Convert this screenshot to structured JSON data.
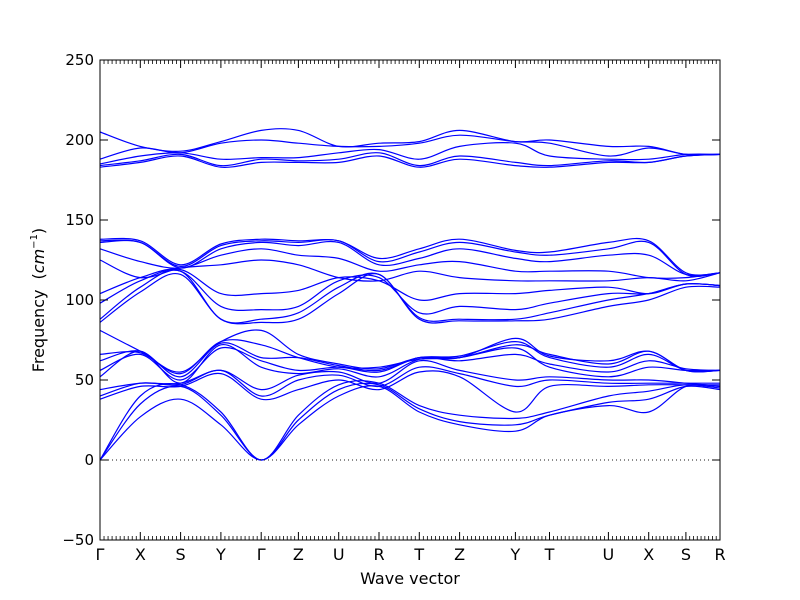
{
  "chart_data": {
    "type": "line",
    "title": "",
    "xlabel": "Wave vector",
    "ylabel": "Frequency",
    "ylabel_unit": "cm",
    "ylabel_unit_exp": "−1",
    "ylim": [
      -50,
      250
    ],
    "yticks": [
      -50,
      0,
      50,
      100,
      150,
      200,
      250
    ],
    "ytick_labels": [
      "−50",
      "0",
      "50",
      "100",
      "150",
      "200",
      "250"
    ],
    "xlim": [
      0,
      100
    ],
    "kpoints": [
      {
        "label": "Γ",
        "x": 0
      },
      {
        "label": "X",
        "x": 6.5
      },
      {
        "label": "S",
        "x": 13
      },
      {
        "label": "Y",
        "x": 19.5
      },
      {
        "label": "Γ",
        "x": 26
      },
      {
        "label": "Z",
        "x": 32
      },
      {
        "label": "U",
        "x": 38.5
      },
      {
        "label": "R",
        "x": 45
      },
      {
        "label": "T",
        "x": 51.5
      },
      {
        "label": "Z",
        "x": 58
      },
      {
        "label": "Y",
        "x": 67
      },
      {
        "label": "T",
        "x": 72.5
      },
      {
        "label": "U",
        "x": 82
      },
      {
        "label": "X",
        "x": 88.5
      },
      {
        "label": "S",
        "x": 94.5
      },
      {
        "label": "R",
        "x": 100
      }
    ],
    "zero_line": true,
    "grid": false,
    "line_color": "#0000ff",
    "series": [
      {
        "values": [
          0,
          27,
          38,
          22,
          0,
          22,
          40,
          46,
          30,
          22,
          18,
          28,
          34,
          30,
          46,
          46
        ]
      },
      {
        "values": [
          0,
          35,
          46,
          28,
          0,
          25,
          44,
          47,
          32,
          24,
          22,
          28,
          36,
          38,
          46,
          44
        ]
      },
      {
        "values": [
          0,
          40,
          47,
          30,
          0,
          28,
          47,
          48,
          34,
          28,
          26,
          30,
          40,
          43,
          47,
          45
        ]
      },
      {
        "values": [
          38,
          46,
          46,
          54,
          38,
          44,
          50,
          44,
          55,
          52,
          30,
          46,
          46,
          47,
          47,
          47
        ]
      },
      {
        "values": [
          40,
          48,
          47,
          56,
          40,
          50,
          53,
          46,
          58,
          54,
          46,
          50,
          48,
          48,
          48,
          48
        ]
      },
      {
        "values": [
          44,
          48,
          48,
          56,
          44,
          53,
          55,
          48,
          62,
          56,
          50,
          52,
          50,
          50,
          48,
          46
        ]
      },
      {
        "values": [
          52,
          68,
          48,
          72,
          58,
          54,
          57,
          52,
          63,
          64,
          70,
          58,
          52,
          58,
          56,
          56
        ]
      },
      {
        "values": [
          56,
          66,
          50,
          70,
          62,
          56,
          58,
          55,
          64,
          62,
          66,
          60,
          55,
          62,
          57,
          56
        ]
      },
      {
        "values": [
          62,
          68,
          52,
          73,
          64,
          64,
          59,
          56,
          64,
          65,
          74,
          64,
          58,
          66,
          56,
          56
        ]
      },
      {
        "values": [
          66,
          67,
          54,
          74,
          72,
          64,
          58,
          58,
          63,
          64,
          72,
          66,
          60,
          68,
          56,
          56
        ]
      },
      {
        "values": [
          81,
          68,
          55,
          74,
          81,
          66,
          60,
          57,
          64,
          64,
          76,
          65,
          62,
          68,
          56,
          56
        ]
      },
      {
        "values": [
          86,
          105,
          116,
          88,
          86,
          88,
          104,
          116,
          88,
          87,
          87,
          88,
          96,
          100,
          108,
          108
        ]
      },
      {
        "values": [
          88,
          108,
          118,
          88,
          88,
          92,
          108,
          116,
          89,
          88,
          88,
          92,
          100,
          104,
          110,
          109
        ]
      },
      {
        "values": [
          98,
          112,
          118,
          96,
          94,
          96,
          112,
          114,
          92,
          96,
          94,
          98,
          104,
          104,
          110,
          109
        ]
      },
      {
        "values": [
          104,
          114,
          119,
          104,
          104,
          106,
          114,
          112,
          100,
          104,
          104,
          106,
          108,
          104,
          110,
          109
        ]
      },
      {
        "values": [
          125,
          114,
          120,
          122,
          125,
          122,
          114,
          112,
          118,
          114,
          112,
          112,
          112,
          114,
          112,
          117
        ]
      },
      {
        "values": [
          132,
          124,
          120,
          128,
          132,
          128,
          126,
          118,
          122,
          124,
          118,
          118,
          118,
          114,
          114,
          117
        ]
      },
      {
        "values": [
          136,
          136,
          120,
          132,
          136,
          134,
          136,
          122,
          126,
          132,
          126,
          124,
          128,
          128,
          116,
          117
        ]
      },
      {
        "values": [
          137,
          136,
          121,
          134,
          137,
          136,
          137,
          124,
          130,
          136,
          130,
          128,
          132,
          136,
          116,
          117
        ]
      },
      {
        "values": [
          138,
          137,
          122,
          135,
          138,
          137,
          137,
          126,
          132,
          138,
          131,
          130,
          136,
          137,
          117,
          117
        ]
      },
      {
        "values": [
          183,
          186,
          190,
          183,
          186,
          186,
          186,
          190,
          183,
          188,
          184,
          183,
          186,
          186,
          190,
          191
        ]
      },
      {
        "values": [
          184,
          187,
          191,
          184,
          188,
          187,
          188,
          192,
          184,
          190,
          186,
          184,
          187,
          186,
          190,
          191
        ]
      },
      {
        "values": [
          185,
          190,
          192,
          188,
          189,
          189,
          192,
          194,
          188,
          196,
          198,
          190,
          188,
          188,
          191,
          191
        ]
      },
      {
        "values": [
          188,
          195,
          192,
          198,
          200,
          198,
          196,
          196,
          198,
          203,
          199,
          198,
          190,
          195,
          191,
          191
        ]
      },
      {
        "values": [
          205,
          196,
          193,
          199,
          206,
          206,
          196,
          198,
          199,
          206,
          199,
          200,
          196,
          196,
          191,
          191
        ]
      }
    ]
  }
}
